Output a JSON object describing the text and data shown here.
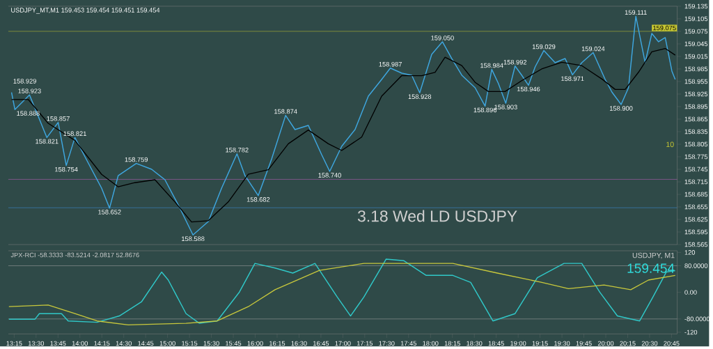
{
  "chart_data": [
    {
      "type": "line",
      "xlim": [
        13.183,
        20.815
      ],
      "ylim": [
        158.565,
        159.135
      ],
      "tick_labels": "y",
      "marker": "none",
      "yticks": [
        159.135,
        159.105,
        159.075,
        159.045,
        159.015,
        158.985,
        158.955,
        158.925,
        158.895,
        158.865,
        158.835,
        158.805,
        158.775,
        158.745,
        158.715,
        158.685,
        158.655,
        158.625,
        158.595,
        158.565
      ],
      "series": [
        {
          "color": "#3fa7e0",
          "x": [
            13.22,
            13.258,
            13.425,
            13.623,
            13.752,
            13.844,
            13.943,
            14.095,
            14.247,
            14.338,
            14.437,
            14.643,
            14.818,
            14.97,
            15.122,
            15.29,
            15.465,
            15.617,
            15.792,
            15.883,
            16.035,
            16.188,
            16.347,
            16.454,
            16.606,
            16.758,
            16.85,
            16.987,
            17.139,
            17.291,
            17.443,
            17.542,
            17.672,
            17.786,
            17.877,
            18.014,
            18.136,
            18.242,
            18.357,
            18.509,
            18.623,
            18.699,
            18.775,
            18.859,
            18.965,
            19.041,
            19.118,
            19.194,
            19.293,
            19.422,
            19.536,
            19.62,
            19.726,
            19.856,
            19.993,
            20.069,
            20.175,
            20.259,
            20.343,
            20.449,
            20.525,
            20.602,
            20.678,
            20.754,
            20.792
          ],
          "values": [
            158.929,
            158.888,
            158.923,
            158.821,
            158.857,
            158.754,
            158.821,
            158.76,
            158.7,
            158.652,
            158.73,
            158.759,
            158.745,
            158.72,
            158.66,
            158.588,
            158.62,
            158.7,
            158.782,
            158.73,
            158.682,
            158.77,
            158.874,
            158.84,
            158.85,
            158.78,
            158.74,
            158.8,
            158.84,
            158.92,
            158.96,
            158.987,
            158.975,
            158.97,
            158.928,
            159.02,
            159.05,
            159.01,
            158.97,
            158.94,
            158.896,
            158.984,
            158.95,
            158.903,
            158.992,
            158.97,
            158.946,
            158.99,
            159.029,
            159.0,
            159.01,
            158.971,
            159.0,
            159.024,
            158.96,
            158.93,
            158.9,
            158.94,
            159.111,
            159.0,
            159.07,
            159.05,
            159.06,
            158.98,
            158.96
          ]
        },
        {
          "color": "#000000",
          "x": [
            13.22,
            13.41,
            13.638,
            13.943,
            14.247,
            14.437,
            14.627,
            14.856,
            15.084,
            15.274,
            15.465,
            15.693,
            15.921,
            16.15,
            16.378,
            16.606,
            16.834,
            16.987,
            17.215,
            17.443,
            17.672,
            17.9,
            18.052,
            18.166,
            18.357,
            18.509,
            18.661,
            18.851,
            19.041,
            19.269,
            19.498,
            19.726,
            19.955,
            20.107,
            20.221,
            20.373,
            20.525,
            20.678,
            20.792
          ],
          "values": [
            158.912,
            158.912,
            158.855,
            158.814,
            158.733,
            158.703,
            158.713,
            158.72,
            158.667,
            158.619,
            158.622,
            158.667,
            158.733,
            158.744,
            158.806,
            158.839,
            158.806,
            158.79,
            158.822,
            158.92,
            158.969,
            158.969,
            158.977,
            159.013,
            158.993,
            158.953,
            158.931,
            158.931,
            158.957,
            158.985,
            159.001,
            158.993,
            158.961,
            158.936,
            158.936,
            158.977,
            159.026,
            159.034,
            159.018
          ]
        }
      ],
      "ref_lines": [
        {
          "axis": "y",
          "value": 159.075,
          "label": "159.075",
          "color": "#c8c832"
        },
        {
          "axis": "y",
          "value": 158.721,
          "color": "#c060c0"
        },
        {
          "axis": "y",
          "value": 158.653,
          "color": "#3f8fe0"
        }
      ],
      "annotations": [
        "USDJPY_MT,M1  159.453 159.454 159.451 159.454",
        "3.18 Wed LD USDJPY",
        "10",
        {
          "text": "158.929",
          "x": 13.22,
          "y": 158.929
        },
        {
          "text": "158.888",
          "x": 13.258,
          "y": 158.888
        },
        {
          "text": "158.923",
          "x": 13.425,
          "y": 158.923
        },
        {
          "text": "158.821",
          "x": 13.623,
          "y": 158.821
        },
        {
          "text": "158.857",
          "x": 13.752,
          "y": 158.857
        },
        {
          "text": "158.754",
          "x": 13.844,
          "y": 158.754
        },
        {
          "text": "158.821",
          "x": 13.943,
          "y": 158.821
        },
        {
          "text": "158.652",
          "x": 14.338,
          "y": 158.652
        },
        {
          "text": "158.759",
          "x": 14.643,
          "y": 158.759
        },
        {
          "text": "158.588",
          "x": 15.29,
          "y": 158.588
        },
        {
          "text": "158.782",
          "x": 15.792,
          "y": 158.782
        },
        {
          "text": "158.682",
          "x": 16.035,
          "y": 158.682
        },
        {
          "text": "158.874",
          "x": 16.347,
          "y": 158.874
        },
        {
          "text": "158.740",
          "x": 16.85,
          "y": 158.74
        },
        {
          "text": "158.987",
          "x": 17.542,
          "y": 158.987
        },
        {
          "text": "158.928",
          "x": 17.877,
          "y": 158.928
        },
        {
          "text": "159.050",
          "x": 18.136,
          "y": 159.05
        },
        {
          "text": "158.896",
          "x": 18.623,
          "y": 158.896
        },
        {
          "text": "158.984",
          "x": 18.699,
          "y": 158.984
        },
        {
          "text": "158.903",
          "x": 18.859,
          "y": 158.903
        },
        {
          "text": "158.992",
          "x": 18.965,
          "y": 158.992
        },
        {
          "text": "158.946",
          "x": 19.118,
          "y": 158.946
        },
        {
          "text": "159.029",
          "x": 19.293,
          "y": 159.029
        },
        {
          "text": "158.971",
          "x": 19.62,
          "y": 158.971
        },
        {
          "text": "159.024",
          "x": 19.856,
          "y": 159.024
        },
        {
          "text": "158.900",
          "x": 20.175,
          "y": 158.9
        },
        {
          "text": "159.111",
          "x": 20.343,
          "y": 159.111
        }
      ]
    },
    {
      "type": "line",
      "xlim": [
        13.183,
        20.815
      ],
      "ylim": [
        -125,
        125
      ],
      "marker": "none",
      "yticks": [
        120,
        {
          "value": 80,
          "label": "80.0000"
        },
        {
          "value": 0,
          "label": "0.00"
        },
        {
          "value": -80,
          "label": "-80.0000"
        },
        -120
      ],
      "xticks": [
        {
          "value": 13.25,
          "label": "13:15"
        },
        {
          "value": 13.5,
          "label": "13:30"
        },
        {
          "value": 13.75,
          "label": "13:45"
        },
        {
          "value": 14.0,
          "label": "14:00"
        },
        {
          "value": 14.25,
          "label": "14:15"
        },
        {
          "value": 14.5,
          "label": "14:30"
        },
        {
          "value": 14.75,
          "label": "14:45"
        },
        {
          "value": 15.0,
          "label": "15:00"
        },
        {
          "value": 15.25,
          "label": "15:15"
        },
        {
          "value": 15.5,
          "label": "15:30"
        },
        {
          "value": 15.75,
          "label": "15:45"
        },
        {
          "value": 16.0,
          "label": "16:00"
        },
        {
          "value": 16.25,
          "label": "16:15"
        },
        {
          "value": 16.5,
          "label": "16:30"
        },
        {
          "value": 16.75,
          "label": "16:45"
        },
        {
          "value": 17.0,
          "label": "17:00"
        },
        {
          "value": 17.25,
          "label": "17:15"
        },
        {
          "value": 17.5,
          "label": "17:30"
        },
        {
          "value": 17.75,
          "label": "17:45"
        },
        {
          "value": 18.0,
          "label": "18:00"
        },
        {
          "value": 18.25,
          "label": "18:15"
        },
        {
          "value": 18.5,
          "label": "18:30"
        },
        {
          "value": 18.75,
          "label": "18:45"
        },
        {
          "value": 19.0,
          "label": "19:00"
        },
        {
          "value": 19.25,
          "label": "19:15"
        },
        {
          "value": 19.5,
          "label": "19:30"
        },
        {
          "value": 19.75,
          "label": "19:45"
        },
        {
          "value": 20.0,
          "label": "20:00"
        },
        {
          "value": 20.25,
          "label": "20:15"
        },
        {
          "value": 20.5,
          "label": "20:30"
        },
        {
          "value": 20.75,
          "label": "20:45"
        }
      ],
      "series": [
        {
          "color": "#30c8c8",
          "x": [
            13.19,
            13.486,
            13.537,
            13.79,
            13.866,
            14.196,
            14.45,
            14.704,
            14.932,
            15.008,
            15.211,
            15.363,
            15.566,
            15.82,
            15.997,
            16.226,
            16.429,
            16.682,
            16.936,
            17.088,
            17.24,
            17.494,
            17.697,
            17.951,
            18.255,
            18.458,
            18.712,
            18.965,
            19.219,
            19.523,
            19.726,
            19.93,
            20.132,
            20.386,
            20.538,
            20.69,
            20.792
          ],
          "values": [
            -81,
            -81,
            -64,
            -64,
            -86,
            -90,
            -71,
            -28,
            61,
            37,
            -64,
            -93,
            -86,
            1,
            87,
            73,
            58,
            87,
            -14,
            -71,
            -14,
            100,
            95,
            51,
            51,
            30,
            -86,
            -64,
            44,
            87,
            87,
            1,
            -71,
            -86,
            -14,
            61,
            65
          ]
        },
        {
          "color": "#c8c83c",
          "x": [
            13.19,
            13.638,
            13.943,
            14.196,
            14.551,
            15.211,
            15.566,
            15.921,
            16.226,
            16.733,
            17.24,
            18.255,
            18.762,
            19.27,
            19.574,
            19.98,
            20.285,
            20.487,
            20.792
          ],
          "values": [
            -43,
            -38,
            -64,
            -86,
            -98,
            -93,
            -86,
            -43,
            8,
            66,
            87,
            87,
            58,
            30,
            11,
            22,
            8,
            37,
            51
          ]
        }
      ],
      "ref_lines": [
        {
          "axis": "y",
          "value": 80,
          "color": "#a8a8a8"
        },
        {
          "axis": "y",
          "value": -80,
          "color": "#a8a8a8"
        }
      ],
      "annotations": [
        "JPX-RCI -58.3333 -83.5214 -2.0817 52.8676",
        "USDJPY, M1",
        "159.454"
      ]
    }
  ]
}
